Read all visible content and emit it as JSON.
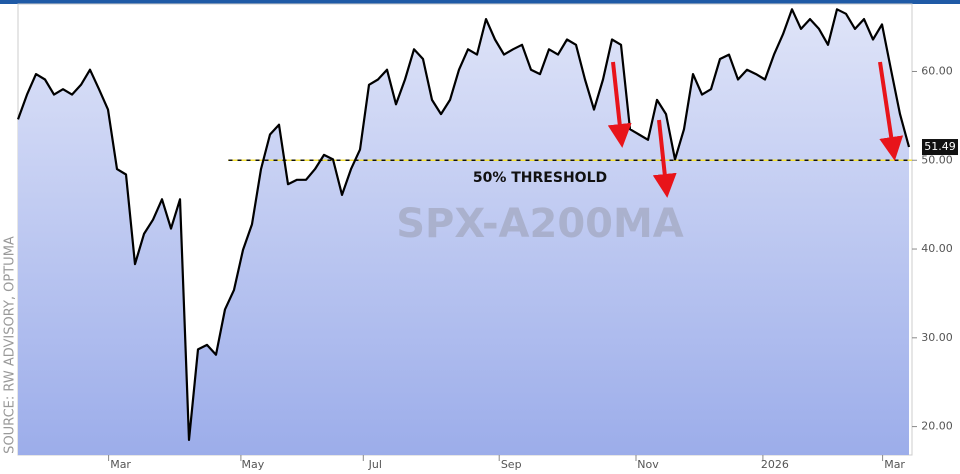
{
  "chart_data": {
    "type": "line",
    "watermark": "SPX-A200MA",
    "source": "SOURCE: RW ADVISORY, OPTUMA",
    "threshold": {
      "value": 50,
      "label": "50% THRESHOLD"
    },
    "x": [
      0,
      1,
      2,
      3,
      4,
      5,
      6,
      7,
      8,
      9,
      10,
      11,
      12,
      13,
      14,
      15,
      16,
      17,
      18,
      19,
      20,
      21,
      22,
      23,
      24,
      25,
      26,
      27,
      28,
      29,
      30,
      31,
      32,
      33,
      34,
      35,
      36,
      37,
      38,
      39,
      40,
      41,
      42,
      43,
      44,
      45,
      46,
      47,
      48,
      49,
      50,
      51,
      52,
      53,
      54,
      55,
      56,
      57,
      58,
      59,
      60,
      61,
      62,
      63,
      64,
      65,
      66,
      67,
      68,
      69,
      70,
      71,
      72,
      73,
      74,
      75,
      76,
      77,
      78,
      79,
      80,
      81,
      82,
      83,
      84,
      85,
      86,
      87,
      88,
      89,
      90,
      91,
      92,
      93,
      94,
      95,
      96,
      97,
      98,
      99
    ],
    "series": [
      {
        "name": "SPX-A200MA",
        "color": "#000000",
        "values": [
          54.6,
          57.4,
          59.7,
          59.1,
          57.4,
          58.0,
          57.4,
          58.5,
          60.2,
          58.0,
          55.7,
          49.0,
          48.4,
          38.3,
          41.7,
          43.3,
          45.6,
          42.3,
          45.6,
          18.5,
          28.7,
          29.2,
          28.1,
          33.2,
          35.4,
          39.9,
          42.8,
          49.0,
          52.9,
          54.0,
          47.3,
          47.8,
          47.8,
          49.0,
          50.6,
          50.1,
          46.1,
          49.0,
          51.2,
          58.5,
          59.1,
          60.2,
          56.3,
          59.1,
          62.5,
          61.4,
          56.8,
          55.2,
          56.8,
          60.2,
          62.5,
          61.9,
          65.9,
          63.6,
          61.9,
          62.5,
          63.0,
          60.2,
          59.7,
          62.5,
          61.9,
          63.6,
          63.0,
          59.1,
          55.7,
          59.1,
          63.6,
          63.0,
          53.5,
          52.9,
          52.3,
          56.8,
          55.2,
          50.1,
          53.5,
          59.7,
          57.4,
          58.0,
          61.4,
          61.9,
          59.1,
          60.2,
          59.7,
          59.1,
          61.9,
          64.2,
          67.0,
          64.8,
          65.9,
          64.8,
          63.0,
          67.0,
          66.5,
          64.8,
          65.9,
          63.6,
          65.3,
          60.2,
          55.2,
          51.49
        ]
      }
    ],
    "xlim": [
      0,
      99
    ],
    "xticks": [
      {
        "value": 11.4,
        "label": "Mar"
      },
      {
        "value": 26.1,
        "label": "May"
      },
      {
        "value": 39.7,
        "label": "Jul"
      },
      {
        "value": 54.8,
        "label": "Sep"
      },
      {
        "value": 70,
        "label": "Nov"
      },
      {
        "value": 84.1,
        "label": "2026"
      },
      {
        "value": 97.4,
        "label": "Mar"
      }
    ],
    "ylim": [
      16.8,
      67.6
    ],
    "yticks": [
      {
        "value": 20,
        "label": "20.00"
      },
      {
        "value": 30,
        "label": "30.00"
      },
      {
        "value": 40,
        "label": "40.00"
      },
      {
        "value": 50,
        "label": "50.00"
      },
      {
        "value": 60,
        "label": "60.00"
      }
    ],
    "grid": false
  }
}
